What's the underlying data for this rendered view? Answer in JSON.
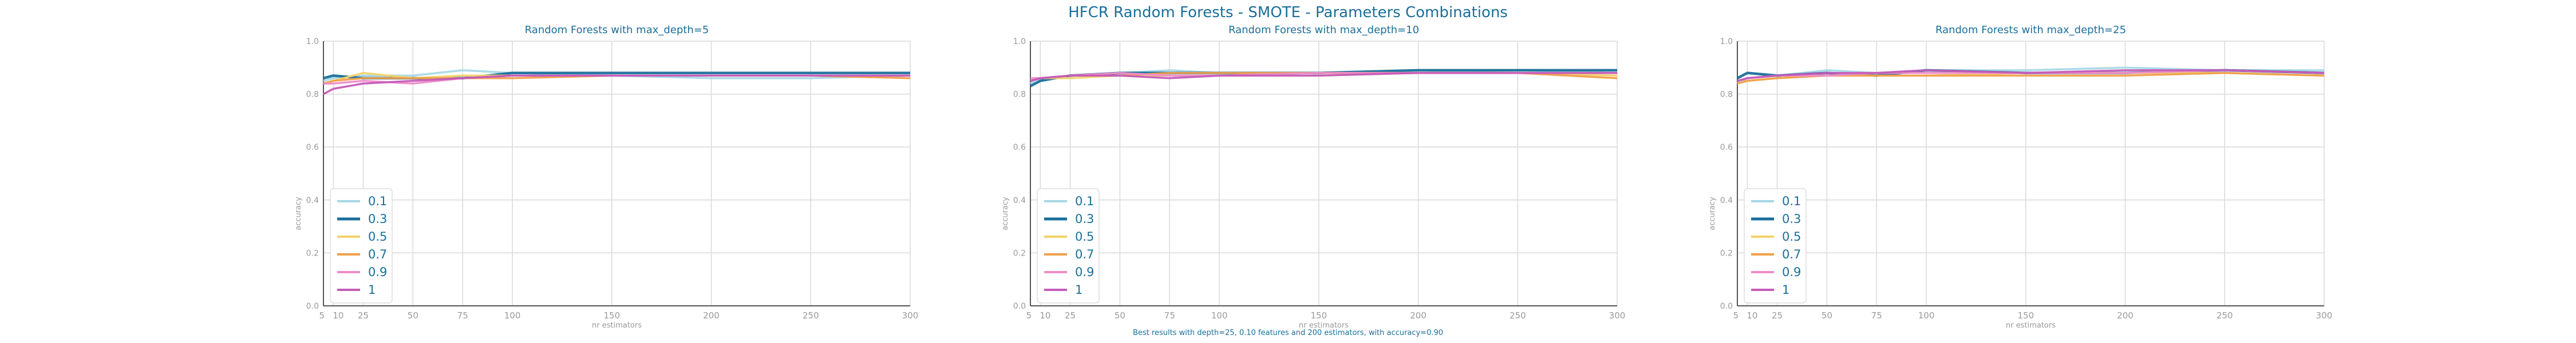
{
  "figure": {
    "title": "HFCR Random Forests - SMOTE - Parameters Combinations",
    "caption": "Best results with depth=25, 0.10 features and 200 estimators, with accuracy=0.90"
  },
  "colors": {
    "title": "#1a6f9a",
    "axis": "#999999",
    "grid": "#d9d9d9",
    "series": [
      "#a6d8e6",
      "#1a6f9a",
      "#f2d36b",
      "#f0a04b",
      "#f08cc8",
      "#c45ab8"
    ]
  },
  "chart_data": [
    {
      "type": "line",
      "title": "Random Forests with max_depth=5",
      "xlabel": "nr estimators",
      "ylabel": "accuracy",
      "x": [
        5,
        10,
        25,
        50,
        75,
        100,
        150,
        200,
        250,
        300
      ],
      "xticks": [
        "5",
        "10",
        "25",
        "50",
        "75",
        "100",
        "150",
        "200",
        "250",
        "300"
      ],
      "xlim": [
        5,
        300
      ],
      "ylim": [
        0,
        1
      ],
      "yticks": [
        "0.0",
        "0.2",
        "0.4",
        "0.6",
        "0.8",
        "1.0"
      ],
      "grid": true,
      "legend_position": "lower-left",
      "series": [
        {
          "name": "0.1",
          "values": [
            0.85,
            0.86,
            0.87,
            0.87,
            0.89,
            0.88,
            0.87,
            0.86,
            0.86,
            0.87
          ]
        },
        {
          "name": "0.3",
          "values": [
            0.86,
            0.87,
            0.86,
            0.86,
            0.86,
            0.88,
            0.88,
            0.88,
            0.88,
            0.88
          ]
        },
        {
          "name": "0.5",
          "values": [
            0.84,
            0.85,
            0.88,
            0.86,
            0.87,
            0.87,
            0.87,
            0.87,
            0.87,
            0.87
          ]
        },
        {
          "name": "0.7",
          "values": [
            0.84,
            0.85,
            0.86,
            0.86,
            0.86,
            0.86,
            0.87,
            0.87,
            0.87,
            0.86
          ]
        },
        {
          "name": "0.9",
          "values": [
            0.84,
            0.84,
            0.85,
            0.84,
            0.86,
            0.87,
            0.87,
            0.87,
            0.87,
            0.87
          ]
        },
        {
          "name": "1",
          "values": [
            0.8,
            0.82,
            0.84,
            0.85,
            0.86,
            0.87,
            0.87,
            0.87,
            0.87,
            0.87
          ]
        }
      ]
    },
    {
      "type": "line",
      "title": "Random Forests with max_depth=10",
      "xlabel": "nr estimators",
      "ylabel": "accuracy",
      "x": [
        5,
        10,
        25,
        50,
        75,
        100,
        150,
        200,
        250,
        300
      ],
      "xticks": [
        "5",
        "10",
        "25",
        "50",
        "75",
        "100",
        "150",
        "200",
        "250",
        "300"
      ],
      "xlim": [
        5,
        300
      ],
      "ylim": [
        0,
        1
      ],
      "yticks": [
        "0.0",
        "0.2",
        "0.4",
        "0.6",
        "0.8",
        "1.0"
      ],
      "grid": true,
      "legend_position": "lower-left",
      "series": [
        {
          "name": "0.1",
          "values": [
            0.84,
            0.86,
            0.87,
            0.88,
            0.89,
            0.88,
            0.88,
            0.88,
            0.89,
            0.88
          ]
        },
        {
          "name": "0.3",
          "values": [
            0.83,
            0.85,
            0.87,
            0.88,
            0.88,
            0.88,
            0.88,
            0.89,
            0.89,
            0.89
          ]
        },
        {
          "name": "0.5",
          "values": [
            0.85,
            0.86,
            0.86,
            0.87,
            0.87,
            0.87,
            0.87,
            0.88,
            0.88,
            0.87
          ]
        },
        {
          "name": "0.7",
          "values": [
            0.85,
            0.86,
            0.87,
            0.87,
            0.88,
            0.88,
            0.88,
            0.88,
            0.88,
            0.86
          ]
        },
        {
          "name": "0.9",
          "values": [
            0.86,
            0.86,
            0.87,
            0.88,
            0.87,
            0.87,
            0.88,
            0.88,
            0.88,
            0.88
          ]
        },
        {
          "name": "1",
          "values": [
            0.85,
            0.86,
            0.87,
            0.87,
            0.86,
            0.87,
            0.87,
            0.88,
            0.88,
            0.88
          ]
        }
      ]
    },
    {
      "type": "line",
      "title": "Random Forests with max_depth=25",
      "xlabel": "nr estimators",
      "ylabel": "accuracy",
      "x": [
        5,
        10,
        25,
        50,
        75,
        100,
        150,
        200,
        250,
        300
      ],
      "xticks": [
        "5",
        "10",
        "25",
        "50",
        "75",
        "100",
        "150",
        "200",
        "250",
        "300"
      ],
      "xlim": [
        5,
        300
      ],
      "ylim": [
        0,
        1
      ],
      "yticks": [
        "0.0",
        "0.2",
        "0.4",
        "0.6",
        "0.8",
        "1.0"
      ],
      "grid": true,
      "legend_position": "lower-left",
      "series": [
        {
          "name": "0.1",
          "values": [
            0.84,
            0.86,
            0.87,
            0.89,
            0.88,
            0.89,
            0.89,
            0.9,
            0.89,
            0.89
          ]
        },
        {
          "name": "0.3",
          "values": [
            0.86,
            0.88,
            0.87,
            0.88,
            0.87,
            0.89,
            0.88,
            0.88,
            0.89,
            0.88
          ]
        },
        {
          "name": "0.5",
          "values": [
            0.84,
            0.85,
            0.86,
            0.87,
            0.87,
            0.87,
            0.88,
            0.88,
            0.88,
            0.87
          ]
        },
        {
          "name": "0.7",
          "values": [
            0.84,
            0.85,
            0.86,
            0.87,
            0.87,
            0.87,
            0.87,
            0.87,
            0.88,
            0.87
          ]
        },
        {
          "name": "0.9",
          "values": [
            0.85,
            0.86,
            0.87,
            0.87,
            0.88,
            0.88,
            0.88,
            0.88,
            0.89,
            0.88
          ]
        },
        {
          "name": "1",
          "values": [
            0.85,
            0.86,
            0.87,
            0.88,
            0.88,
            0.89,
            0.88,
            0.89,
            0.89,
            0.88
          ]
        }
      ]
    }
  ]
}
